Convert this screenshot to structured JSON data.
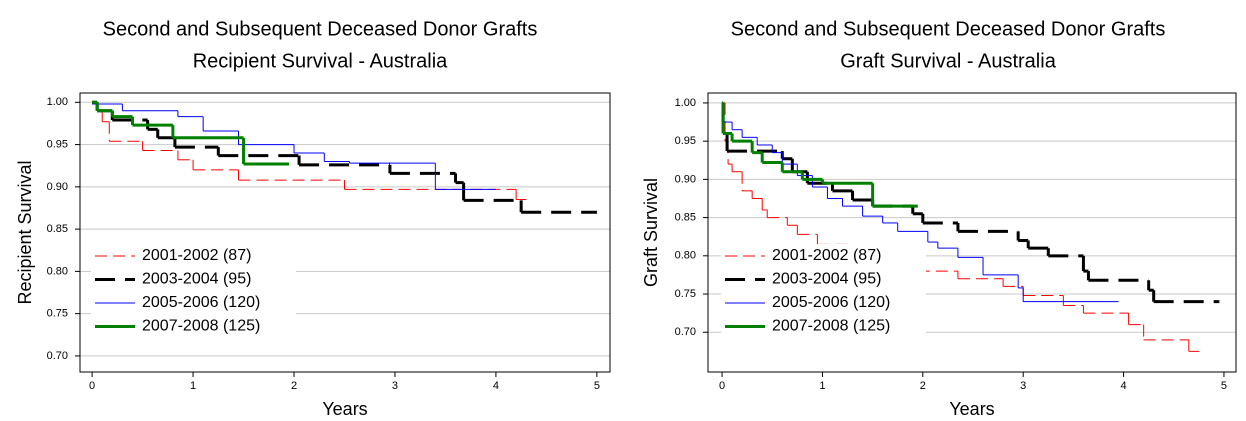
{
  "chart_data": [
    {
      "type": "line",
      "step": "post",
      "title": "Second and Subsequent Deceased Donor Grafts",
      "subtitle": "Recipient Survival  -  Australia",
      "x_label": "Years",
      "y_label": "Recipient Survival",
      "xlim": [
        -0.12,
        5.13
      ],
      "ylim": [
        0.681,
        1.011
      ],
      "xticks": [
        0,
        1,
        2,
        3,
        4,
        5
      ],
      "yticks": [
        {
          "value": 0.7,
          "label": "0.70"
        },
        {
          "value": 0.75,
          "label": "0.75"
        },
        {
          "value": 0.8,
          "label": "0.80"
        },
        {
          "value": 0.85,
          "label": "0.85"
        },
        {
          "value": 0.9,
          "label": "0.90"
        },
        {
          "value": 0.95,
          "label": "0.95"
        },
        {
          "value": 1.0,
          "label": "1.00"
        }
      ],
      "grid": true,
      "legend": "lower left",
      "series": [
        {
          "name": "2001-2002 (87)",
          "color": "#ff0000",
          "line_style": "dashed",
          "line_width": 1,
          "x": [
            0,
            0.05,
            0.1,
            0.17,
            0.5,
            0.85,
            1.0,
            1.45,
            2.5,
            4.2,
            4.3
          ],
          "values": [
            1.0,
            0.99,
            0.977,
            0.954,
            0.943,
            0.932,
            0.92,
            0.908,
            0.897,
            0.885,
            0.885
          ]
        },
        {
          "name": "2003-2004 (95)",
          "color": "#000000",
          "line_style": "dashed",
          "line_width": 3,
          "x": [
            0,
            0.05,
            0.2,
            0.55,
            0.65,
            0.82,
            1.25,
            2.05,
            2.95,
            3.6,
            3.68,
            4.25,
            5.0
          ],
          "values": [
            1.0,
            0.99,
            0.979,
            0.968,
            0.958,
            0.947,
            0.937,
            0.926,
            0.916,
            0.905,
            0.884,
            0.87,
            0.87
          ]
        },
        {
          "name": "2005-2006 (120)",
          "color": "#0000ff",
          "line_style": "solid",
          "line_width": 1,
          "x": [
            0,
            0.3,
            0.85,
            1.1,
            1.45,
            2.0,
            2.3,
            2.55,
            3.4,
            4.0
          ],
          "values": [
            0.998,
            0.99,
            0.983,
            0.966,
            0.95,
            0.94,
            0.93,
            0.928,
            0.897,
            0.897
          ]
        },
        {
          "name": "2007-2008 (125)",
          "color": "#008000",
          "line_style": "solid",
          "line_width": 3,
          "x": [
            0,
            0.05,
            0.2,
            0.4,
            0.8,
            1.5,
            1.95
          ],
          "values": [
            1.0,
            0.99,
            0.983,
            0.973,
            0.958,
            0.927,
            0.927
          ]
        }
      ]
    },
    {
      "type": "line",
      "step": "post",
      "title": "Second and Subsequent Deceased Donor Grafts",
      "subtitle": "Graft Survival  -  Australia",
      "x_label": "Years",
      "y_label": "Graft Survival",
      "xlim": [
        -0.14,
        5.12
      ],
      "ylim": [
        0.648,
        1.013
      ],
      "xticks": [
        0,
        1,
        2,
        3,
        4,
        5
      ],
      "yticks": [
        {
          "value": 0.7,
          "label": "0.70"
        },
        {
          "value": 0.75,
          "label": "0.75"
        },
        {
          "value": 0.8,
          "label": "0.80"
        },
        {
          "value": 0.85,
          "label": "0.85"
        },
        {
          "value": 0.9,
          "label": "0.90"
        },
        {
          "value": 0.95,
          "label": "0.95"
        },
        {
          "value": 1.0,
          "label": "1.00"
        }
      ],
      "grid": true,
      "legend": "lower left",
      "series": [
        {
          "name": "2001-2002 (87)",
          "color": "#ff0000",
          "line_style": "dashed",
          "line_width": 1,
          "x": [
            0,
            0.03,
            0.06,
            0.1,
            0.2,
            0.3,
            0.4,
            0.45,
            0.65,
            0.75,
            0.95,
            1.3,
            1.95,
            2.35,
            2.8,
            3.0,
            3.4,
            3.6,
            4.05,
            4.2,
            4.65,
            4.75
          ],
          "values": [
            1.0,
            0.95,
            0.92,
            0.91,
            0.885,
            0.875,
            0.86,
            0.85,
            0.84,
            0.828,
            0.815,
            0.81,
            0.78,
            0.77,
            0.76,
            0.748,
            0.735,
            0.725,
            0.71,
            0.69,
            0.675,
            0.675
          ]
        },
        {
          "name": "2003-2004 (95)",
          "color": "#000000",
          "line_style": "dashed",
          "line_width": 3,
          "x": [
            0,
            0.01,
            0.05,
            0.6,
            0.7,
            0.85,
            1.1,
            1.3,
            1.5,
            1.9,
            2.0,
            2.35,
            2.95,
            3.05,
            3.25,
            3.6,
            3.65,
            4.25,
            4.3,
            4.95
          ],
          "values": [
            1.0,
            0.96,
            0.937,
            0.927,
            0.91,
            0.895,
            0.885,
            0.873,
            0.865,
            0.855,
            0.843,
            0.832,
            0.82,
            0.81,
            0.8,
            0.78,
            0.768,
            0.755,
            0.74,
            0.74
          ]
        },
        {
          "name": "2005-2006 (120)",
          "color": "#0000ff",
          "line_style": "solid",
          "line_width": 1,
          "x": [
            0,
            0.02,
            0.1,
            0.2,
            0.35,
            0.5,
            0.6,
            0.75,
            0.9,
            1.05,
            1.2,
            1.4,
            1.6,
            1.75,
            2.05,
            2.15,
            2.35,
            2.6,
            2.95,
            3.0,
            3.95
          ],
          "values": [
            1.0,
            0.975,
            0.965,
            0.955,
            0.945,
            0.935,
            0.92,
            0.905,
            0.89,
            0.875,
            0.865,
            0.852,
            0.843,
            0.832,
            0.818,
            0.81,
            0.798,
            0.775,
            0.758,
            0.74,
            0.74
          ]
        },
        {
          "name": "2007-2008 (125)",
          "color": "#008000",
          "line_style": "solid",
          "line_width": 3,
          "x": [
            0,
            0.01,
            0.1,
            0.3,
            0.4,
            0.6,
            0.8,
            1.0,
            1.5,
            1.95
          ],
          "values": [
            1.0,
            0.96,
            0.95,
            0.935,
            0.922,
            0.91,
            0.9,
            0.895,
            0.865,
            0.865
          ]
        }
      ]
    }
  ]
}
